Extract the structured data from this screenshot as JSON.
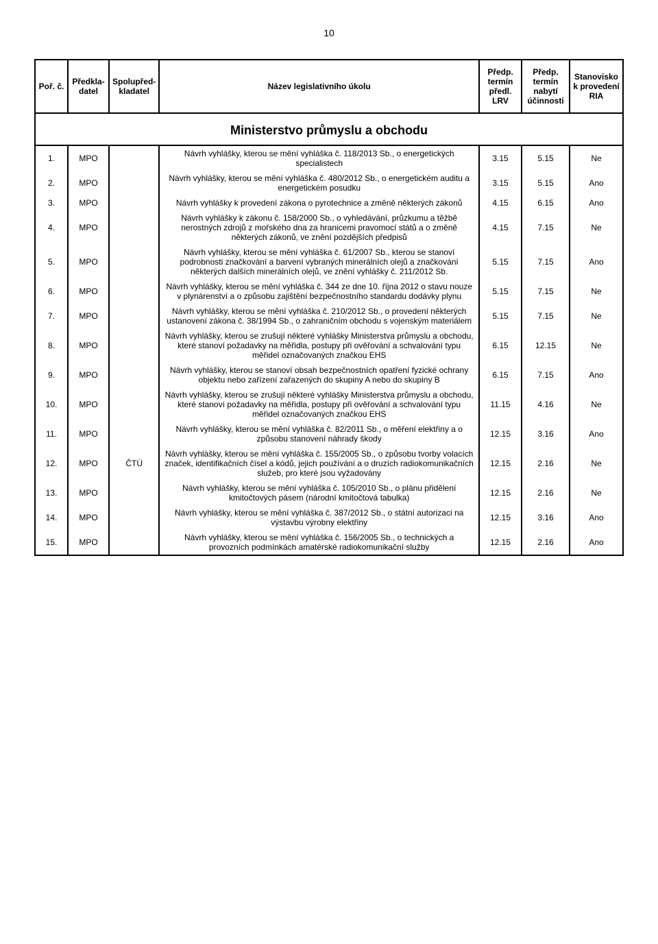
{
  "pageNumber": "10",
  "tableHeaders": {
    "idx": "Poř. č.",
    "author": "Předkla-datel",
    "coauthor": "Spolupřed-kladatel",
    "desc": "Název legislativního úkolu",
    "lrv": "Předp. termín předl. LRV",
    "eff": "Předp. termín nabytí účinnosti",
    "ria": "Stanovisko k provedení RIA"
  },
  "sectionTitle": "Ministerstvo průmyslu a obchodu",
  "rows": [
    {
      "idx": "1.",
      "author": "MPO",
      "coauthor": "",
      "desc": "Návrh vyhlášky, kterou se mění vyhláška č. 118/2013 Sb., o energetických specialistech",
      "lrv": "3.15",
      "eff": "5.15",
      "ria": "Ne"
    },
    {
      "idx": "2.",
      "author": "MPO",
      "coauthor": "",
      "desc": "Návrh vyhlášky, kterou se mění vyhláška č. 480/2012 Sb., o energetickém auditu a energetickém posudku",
      "lrv": "3.15",
      "eff": "5.15",
      "ria": "Ano"
    },
    {
      "idx": "3.",
      "author": "MPO",
      "coauthor": "",
      "desc": "Návrh vyhlášky k provedení zákona o pyrotechnice a změně některých zákonů",
      "lrv": "4.15",
      "eff": "6.15",
      "ria": "Ano"
    },
    {
      "idx": "4.",
      "author": "MPO",
      "coauthor": "",
      "desc": "Návrh vyhlášky k zákonu č. 158/2000 Sb., o vyhledávání, průzkumu a těžbě nerostných zdrojů z mořského dna za hranicemi pravomocí států a o změně některých zákonů, ve znění pozdějších předpisů",
      "lrv": "4.15",
      "eff": "7.15",
      "ria": "Ne"
    },
    {
      "idx": "5.",
      "author": "MPO",
      "coauthor": "",
      "desc": "Návrh vyhlášky, kterou se mění vyhláška č. 61/2007 Sb., kterou se stanoví podrobnosti značkování a barvení vybraných minerálních olejů a značkování některých dalších minerálních olejů, ve znění vyhlášky č. 211/2012 Sb.",
      "lrv": "5.15",
      "eff": "7.15",
      "ria": "Ano"
    },
    {
      "idx": "6.",
      "author": "MPO",
      "coauthor": "",
      "desc": "Návrh vyhlášky, kterou se mění vyhláška č. 344 ze dne 10. října 2012 o stavu nouze v plynárenství a o způsobu zajištění bezpečnostního standardu dodávky plynu",
      "lrv": "5.15",
      "eff": "7.15",
      "ria": "Ne"
    },
    {
      "idx": "7.",
      "author": "MPO",
      "coauthor": "",
      "desc": "Návrh vyhlášky, kterou se mění vyhláška č. 210/2012 Sb., o provedení některých ustanovení zákona č. 38/1994 Sb., o zahraničním obchodu s vojenským materiálem",
      "lrv": "5.15",
      "eff": "7.15",
      "ria": "Ne"
    },
    {
      "idx": "8.",
      "author": "MPO",
      "coauthor": "",
      "desc": "Návrh vyhlášky, kterou se zrušují některé vyhlášky Ministerstva průmyslu a obchodu, které stanoví požadavky na měřidla, postupy při ověřování a schvalování typu měřidel označovaných značkou EHS",
      "lrv": "6.15",
      "eff": "12.15",
      "ria": "Ne"
    },
    {
      "idx": "9.",
      "author": "MPO",
      "coauthor": "",
      "desc": "Návrh vyhlášky, kterou se stanoví obsah bezpečnostních opatření fyzické ochrany objektu nebo zařízení zařazených do skupiny A nebo do skupiny B",
      "lrv": "6.15",
      "eff": "7.15",
      "ria": "Ano"
    },
    {
      "idx": "10.",
      "author": "MPO",
      "coauthor": "",
      "desc": "Návrh vyhlášky, kterou se zrušují některé vyhlášky Ministerstva průmyslu a obchodu, které stanoví požadavky na měřidla, postupy při ověřování a schvalování typu měřidel označovaných značkou EHS",
      "lrv": "11.15",
      "eff": "4.16",
      "ria": "Ne"
    },
    {
      "idx": "11.",
      "author": "MPO",
      "coauthor": "",
      "desc": "Návrh vyhlášky, kterou se mění vyhláška č. 82/2011 Sb., o měření elektřiny a o způsobu stanovení náhrady škody",
      "lrv": "12.15",
      "eff": "3.16",
      "ria": "Ano"
    },
    {
      "idx": "12.",
      "author": "MPO",
      "coauthor": "ČTÚ",
      "desc": "Návrh vyhlášky, kterou se mění vyhláška č. 155/2005 Sb., o způsobu tvorby volacích značek, identifikačních čísel a kódů, jejich používání a o druzích radiokomunikačních služeb, pro které jsou vyžadovány",
      "lrv": "12.15",
      "eff": "2.16",
      "ria": "Ne"
    },
    {
      "idx": "13.",
      "author": "MPO",
      "coauthor": "",
      "desc": "Návrh vyhlášky, kterou se mění vyhláška č. 105/2010 Sb., o plánu přidělení kmitočtových pásem (národní kmitočtová tabulka)",
      "lrv": "12.15",
      "eff": "2.16",
      "ria": "Ne"
    },
    {
      "idx": "14.",
      "author": "MPO",
      "coauthor": "",
      "desc": "Návrh vyhlášky, kterou se mění vyhláška č. 387/2012 Sb., o státní autorizaci na výstavbu výrobny elektřiny",
      "lrv": "12.15",
      "eff": "3.16",
      "ria": "Ano"
    },
    {
      "idx": "15.",
      "author": "MPO",
      "coauthor": "",
      "desc": "Návrh vyhlášky, kterou se mění vyhláška č. 156/2005 Sb., o technických a provozních podmínkách amatérské radiokomunikační služby",
      "lrv": "12.15",
      "eff": "2.16",
      "ria": "Ano"
    }
  ]
}
